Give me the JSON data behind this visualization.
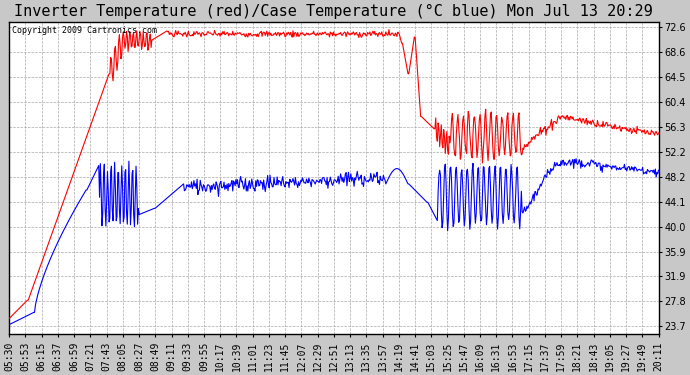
{
  "title": "Inverter Temperature (red)/Case Temperature (°C blue) Mon Jul 13 20:29",
  "copyright": "Copyright 2009 Cartronics.com",
  "yticks": [
    23.7,
    27.8,
    31.9,
    35.9,
    40.0,
    44.1,
    48.2,
    52.2,
    56.3,
    60.4,
    64.5,
    68.6,
    72.6
  ],
  "ylim": [
    22.5,
    73.5
  ],
  "bg_color": "#c8c8c8",
  "plot_bg": "#ffffff",
  "red_color": "red",
  "blue_color": "blue",
  "grid_color": "#aaaaaa",
  "title_fontsize": 11,
  "tick_fontsize": 7,
  "copyright_fontsize": 6,
  "time_labels": [
    "05:30",
    "05:53",
    "06:15",
    "06:37",
    "06:59",
    "07:21",
    "07:43",
    "08:05",
    "08:27",
    "08:49",
    "09:11",
    "09:33",
    "09:55",
    "10:17",
    "10:39",
    "11:01",
    "11:23",
    "11:45",
    "12:07",
    "12:29",
    "12:51",
    "13:13",
    "13:35",
    "13:57",
    "14:19",
    "14:41",
    "15:03",
    "15:25",
    "15:47",
    "16:09",
    "16:31",
    "16:53",
    "17:15",
    "17:37",
    "17:59",
    "18:21",
    "18:43",
    "19:05",
    "19:27",
    "19:49",
    "20:11"
  ]
}
